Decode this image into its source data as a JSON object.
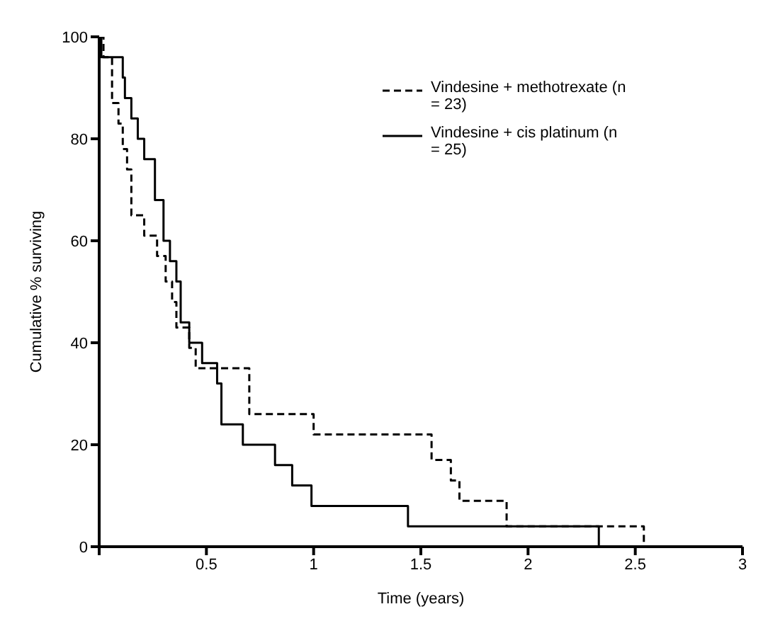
{
  "chart_data": {
    "type": "step",
    "xlabel": "Time (years)",
    "ylabel": "Cumulative % surviving",
    "xlim": [
      0,
      3
    ],
    "xticks": [
      {
        "value": 0,
        "label": null
      },
      0.5,
      1,
      1.5,
      2,
      2.5,
      3
    ],
    "ylim": [
      0,
      100
    ],
    "yticks": [
      0,
      20,
      40,
      60,
      80,
      100
    ],
    "grid": false,
    "legend": "top right",
    "marker": "none",
    "series": [
      {
        "name": "Vindesine + methotrexate (n = 23)",
        "color": "#000000",
        "line_style": "dashed",
        "x": [
          0,
          0.02,
          0.06,
          0.09,
          0.11,
          0.13,
          0.15,
          0.21,
          0.27,
          0.31,
          0.34,
          0.36,
          0.42,
          0.45,
          0.7,
          1.0,
          1.55,
          1.64,
          1.68,
          1.9,
          2.54
        ],
        "values": [
          100,
          96,
          87,
          83,
          78,
          74,
          65,
          61,
          57,
          52,
          48,
          43,
          39,
          35,
          26,
          22,
          17,
          13,
          9,
          4,
          0
        ]
      },
      {
        "name": "Vindesine + cis platinum (n = 25)",
        "color": "#000000",
        "line_style": "solid",
        "x": [
          0,
          0.01,
          0.11,
          0.12,
          0.15,
          0.18,
          0.21,
          0.26,
          0.3,
          0.33,
          0.36,
          0.38,
          0.42,
          0.48,
          0.55,
          0.57,
          0.67,
          0.82,
          0.9,
          0.99,
          1.44,
          2.33
        ],
        "values": [
          100,
          96,
          92,
          88,
          84,
          80,
          76,
          68,
          60,
          56,
          52,
          44,
          40,
          36,
          32,
          24,
          20,
          16,
          12,
          8,
          4,
          0
        ]
      }
    ]
  }
}
